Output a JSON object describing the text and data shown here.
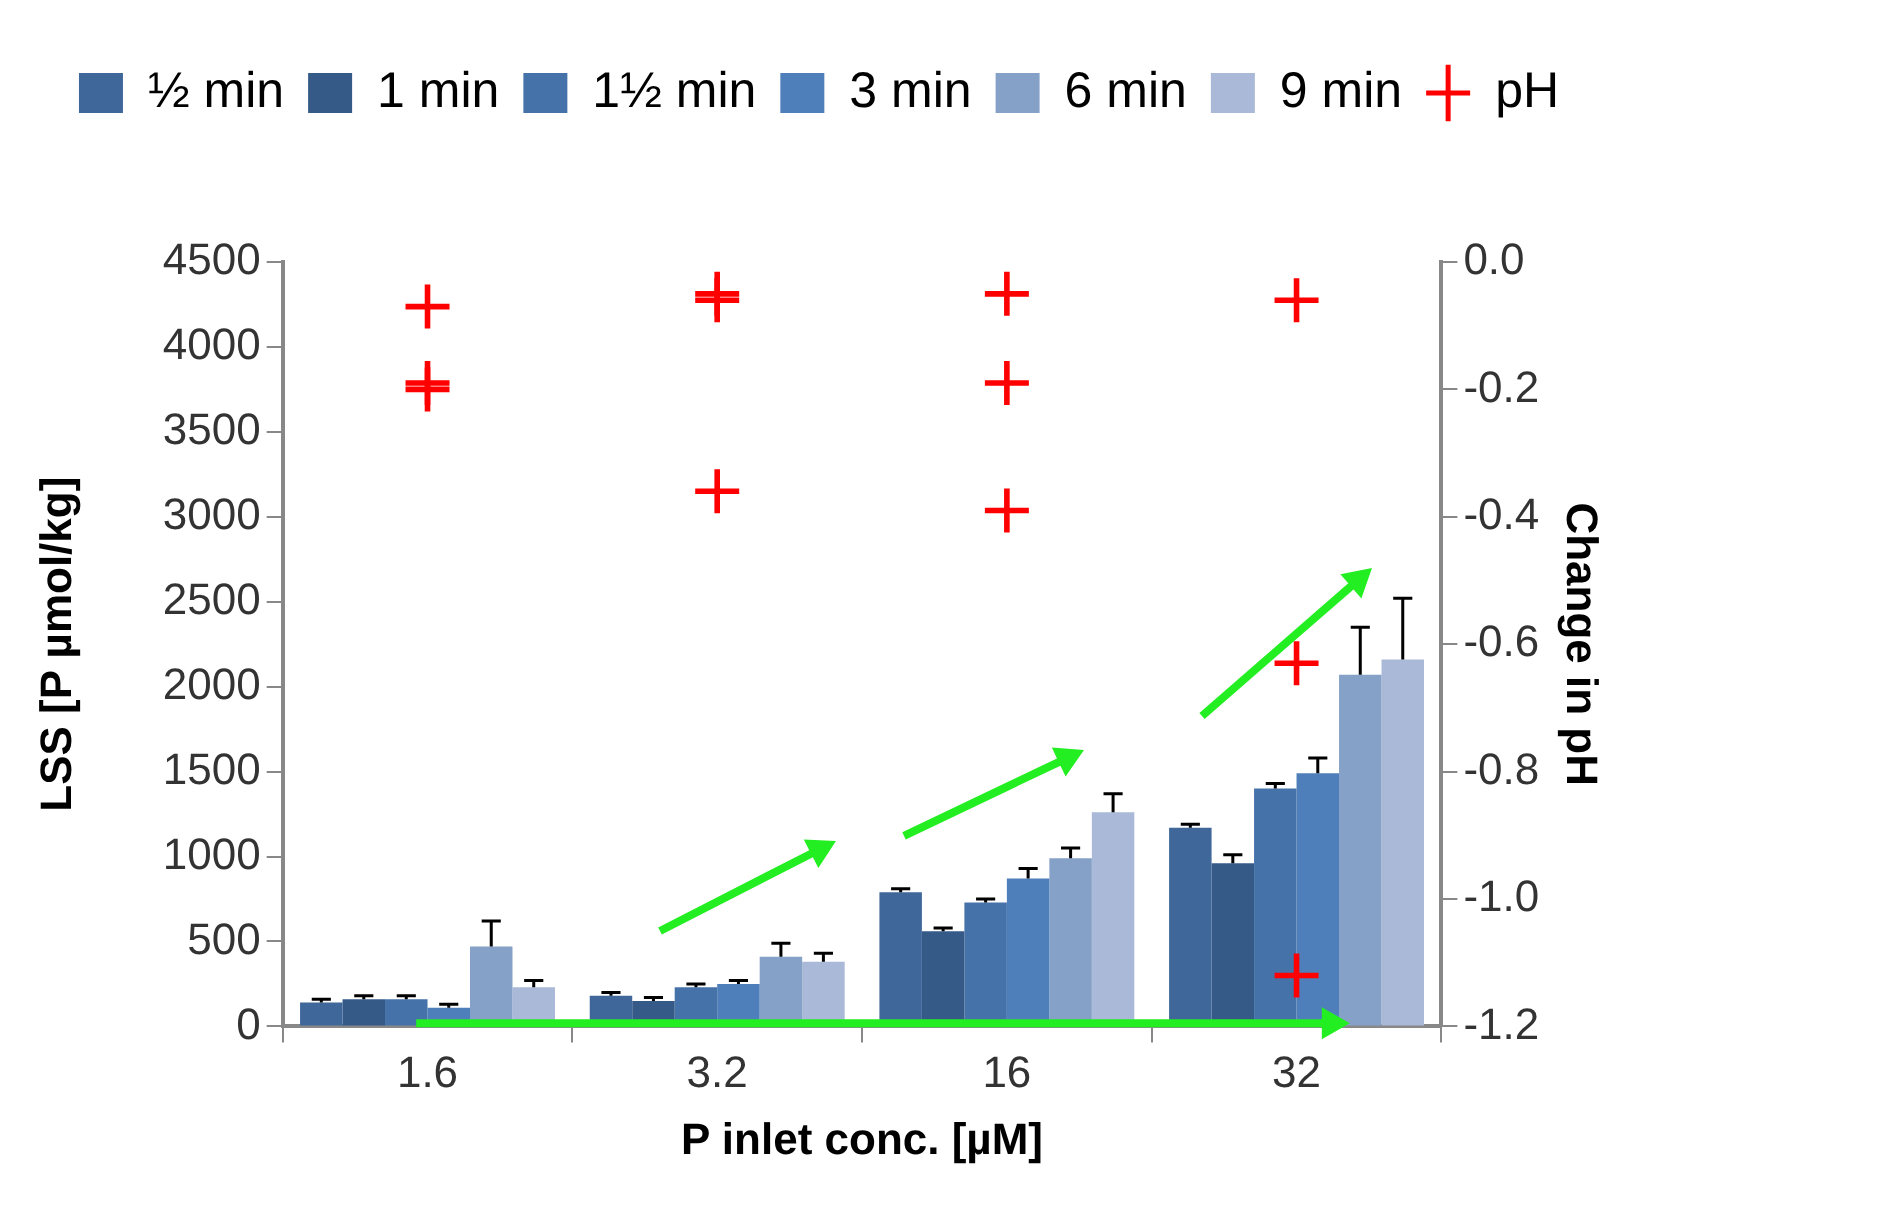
{
  "chart_data": {
    "type": "bar",
    "xlabel": "P inlet conc. [µM]",
    "ylabel": "LSS [P µmol/kg]",
    "y2label": "Change in pH",
    "categories": [
      "1.6",
      "3.2",
      "16",
      "32"
    ],
    "series": [
      {
        "name": "½ min",
        "color": "#3f6799",
        "values": [
          140,
          180,
          790,
          1170
        ],
        "errors": [
          [
            140,
            160
          ],
          [
            180,
            200
          ],
          [
            790,
            810
          ],
          [
            1170,
            1190
          ]
        ]
      },
      {
        "name": "1 min",
        "color": "#355a87",
        "values": [
          160,
          150,
          560,
          960
        ],
        "errors": [
          [
            160,
            180
          ],
          [
            150,
            170
          ],
          [
            560,
            580
          ],
          [
            960,
            1010
          ]
        ]
      },
      {
        "name": "1½ min",
        "color": "#4672aa",
        "values": [
          160,
          230,
          730,
          1400
        ],
        "errors": [
          [
            160,
            180
          ],
          [
            230,
            250
          ],
          [
            730,
            750
          ],
          [
            1400,
            1430
          ]
        ]
      },
      {
        "name": "3 min",
        "color": "#4e7fba",
        "values": [
          110,
          250,
          870,
          1490
        ],
        "errors": [
          [
            110,
            130
          ],
          [
            250,
            270
          ],
          [
            870,
            930
          ],
          [
            1490,
            1580
          ]
        ]
      },
      {
        "name": "6 min",
        "color": "#86a1c8",
        "values": [
          470,
          410,
          990,
          2070
        ],
        "errors": [
          [
            470,
            620
          ],
          [
            410,
            490
          ],
          [
            990,
            1050
          ],
          [
            2070,
            2350
          ]
        ]
      },
      {
        "name": "9 min",
        "color": "#a9b9d7",
        "values": [
          230,
          380,
          1260,
          2160
        ],
        "errors": [
          [
            230,
            270
          ],
          [
            380,
            430
          ],
          [
            1260,
            1370
          ],
          [
            2160,
            2520
          ]
        ]
      },
      {
        "name": "pH",
        "type": "scatter",
        "axis": "y2",
        "marker": "cross",
        "color": "#ff0000",
        "x": [
          "1.6",
          "1.6",
          "1.6",
          "3.2",
          "3.2",
          "3.2",
          "16",
          "16",
          "16",
          "32",
          "32",
          "32"
        ],
        "values": [
          -0.07,
          -0.2,
          -0.19,
          -0.36,
          -0.06,
          -0.05,
          -0.39,
          -0.05,
          -0.19,
          -1.12,
          -0.06,
          -0.63
        ]
      }
    ],
    "ylim": [
      0,
      4500
    ],
    "yticks": [
      0,
      500,
      1000,
      1500,
      2000,
      2500,
      3000,
      3500,
      4000,
      4500
    ],
    "y2lim": [
      -1.2,
      0
    ],
    "y2ticks": [
      {
        "value": -1.2,
        "label": "-1.2"
      },
      {
        "value": -1,
        "label": "-1.0"
      },
      {
        "value": -0.8,
        "label": "-0.8"
      },
      {
        "value": -0.6,
        "label": "-0.6"
      },
      {
        "value": -0.4,
        "label": "-0.4"
      },
      {
        "value": -0.2,
        "label": "-0.2"
      },
      {
        "value": 0,
        "label": "0.0"
      }
    ],
    "legend": "top",
    "grid": false
  }
}
